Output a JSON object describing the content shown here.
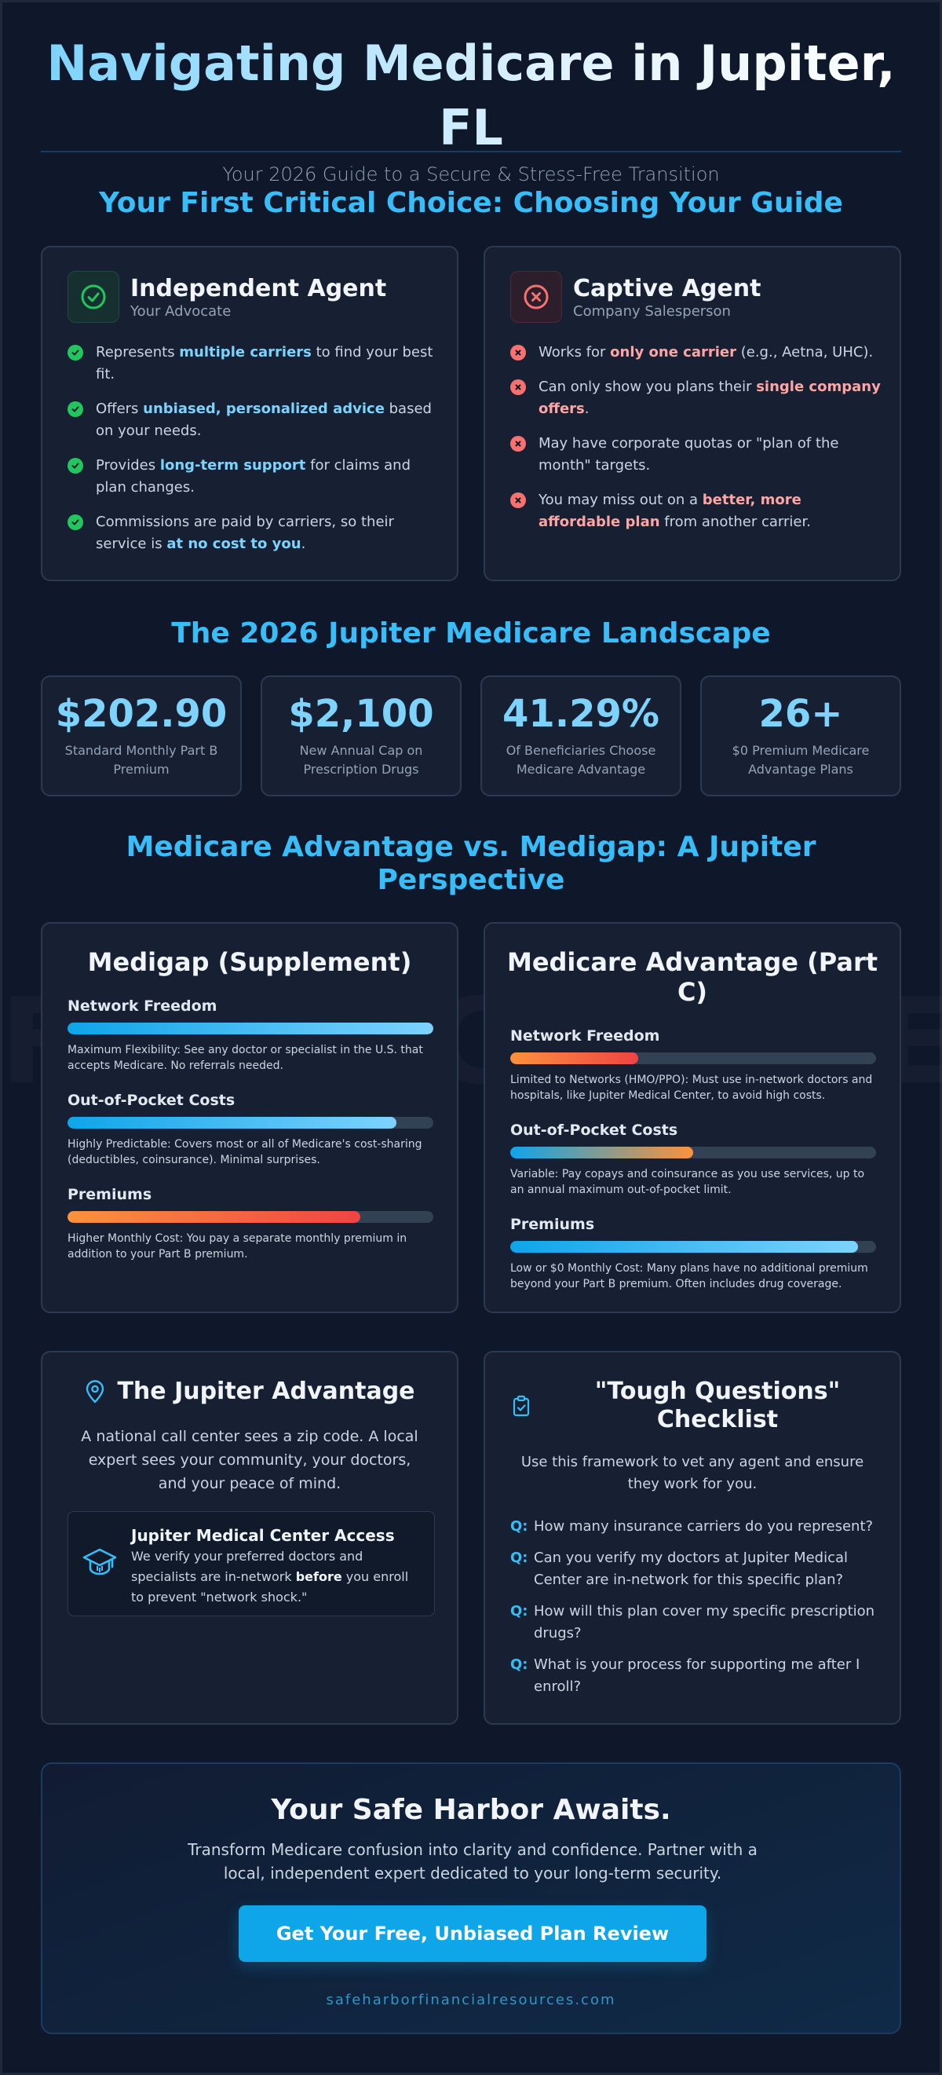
{
  "header": {
    "title": "Navigating Medicare in Jupiter, FL",
    "subtitle": "Your 2026 Guide to a Secure & Stress-Free Transition"
  },
  "watermark": "FINANCIAL RES",
  "guide_section": {
    "title": "Your First Critical Choice: Choosing Your Guide",
    "independent": {
      "icon": "check-circle-icon",
      "name": "Independent Agent",
      "role": "Your Advocate",
      "color": "#22c55e",
      "bullets": [
        {
          "pre": "Represents ",
          "hl": "multiple carriers",
          "post": " to find your best fit."
        },
        {
          "pre": "Offers ",
          "hl": "unbiased, personalized advice",
          "post": " based on your needs."
        },
        {
          "pre": "Provides ",
          "hl": "long-term support",
          "post": " for claims and plan changes."
        },
        {
          "pre": "Commissions are paid by carriers, so their service is ",
          "hl": "at no cost to you",
          "post": "."
        }
      ]
    },
    "captive": {
      "icon": "x-circle-icon",
      "name": "Captive Agent",
      "role": "Company Salesperson",
      "color": "#f87171",
      "bullets": [
        {
          "pre": "Works for ",
          "hl": "only one carrier",
          "post": " (e.g., Aetna, UHC)."
        },
        {
          "pre": "Can only show you plans their ",
          "hl": "single company offers",
          "post": "."
        },
        {
          "pre": "May have corporate quotas or \"plan of the month\" targets.",
          "hl": "",
          "post": ""
        },
        {
          "pre": "You may miss out on a ",
          "hl": "better, more affordable plan",
          "post": " from another carrier."
        }
      ]
    }
  },
  "landscape": {
    "title": "The 2026 Jupiter Medicare Landscape",
    "stats": [
      {
        "value": "$202.90",
        "label": "Standard Monthly Part B Premium"
      },
      {
        "value": "$2,100",
        "label": "New Annual Cap on Prescription Drugs"
      },
      {
        "value": "41.29%",
        "label": "Of Beneficiaries Choose Medicare Advantage"
      },
      {
        "value": "26+",
        "label": "$0 Premium Medicare Advantage Plans"
      }
    ]
  },
  "comparison": {
    "title": "Medicare Advantage vs. Medigap: A Jupiter Perspective",
    "medigap": {
      "title": "Medigap (Supplement)",
      "metrics": [
        {
          "name": "Network Freedom",
          "level": 1.0,
          "from": "#0ea5e9",
          "to": "#7dd3fc",
          "desc": "Maximum Flexibility: See any doctor or specialist in the U.S. that accepts Medicare. No referrals needed."
        },
        {
          "name": "Out-of-Pocket Costs",
          "level": 0.9,
          "from": "#0ea5e9",
          "to": "#7dd3fc",
          "desc": "Highly Predictable: Covers most or all of Medicare's cost-sharing (deductibles, coinsurance). Minimal surprises."
        },
        {
          "name": "Premiums",
          "level": 0.8,
          "from": "#fb923c",
          "to": "#ef4444",
          "desc": "Higher Monthly Cost: You pay a separate monthly premium in addition to your Part B premium."
        }
      ]
    },
    "advantage": {
      "title": "Medicare Advantage (Part C)",
      "metrics": [
        {
          "name": "Network Freedom",
          "level": 0.35,
          "from": "#fb923c",
          "to": "#ef4444",
          "desc": "Limited to Networks (HMO/PPO): Must use in-network doctors and hospitals, like Jupiter Medical Center, to avoid high costs."
        },
        {
          "name": "Out-of-Pocket Costs",
          "level": 0.5,
          "from": "#0ea5e9",
          "to": "#fb923c",
          "desc": "Variable: Pay copays and coinsurance as you use services, up to an annual maximum out-of-pocket limit."
        },
        {
          "name": "Premiums",
          "level": 0.95,
          "from": "#0ea5e9",
          "to": "#7dd3fc",
          "desc": "Low or $0 Monthly Cost: Many plans have no additional premium beyond your Part B premium. Often includes drug coverage."
        }
      ]
    }
  },
  "jupiter": {
    "icon": "map-pin-icon",
    "title": "The Jupiter Advantage",
    "text": "A national call center sees a zip code. A local expert sees your community, your doctors, and your peace of mind.",
    "box": {
      "icon": "graduation-cap-icon",
      "title": "Jupiter Medical Center Access",
      "pre": "We verify your preferred doctors and specialists are in-network ",
      "bold": "before",
      "post": " you enroll to prevent \"network shock.\""
    }
  },
  "checklist": {
    "icon": "clipboard-check-icon",
    "title": "\"Tough Questions\" Checklist",
    "text": "Use this framework to vet any agent and ensure they work for you.",
    "q_label": "Q:",
    "questions": [
      "How many insurance carriers do you represent?",
      "Can you verify my doctors at Jupiter Medical Center are in-network for this specific plan?",
      "How will this plan cover my specific prescription drugs?",
      "What is your process for supporting me after I enroll?"
    ]
  },
  "cta": {
    "title": "Your Safe Harbor Awaits.",
    "text": "Transform Medicare confusion into clarity and confidence. Partner with a local, independent expert dedicated to your long-term security.",
    "button": "Get Your Free, Unbiased Plan Review",
    "url": "safeharborfinancialresources.com",
    "accent": "#0ea5e9"
  }
}
